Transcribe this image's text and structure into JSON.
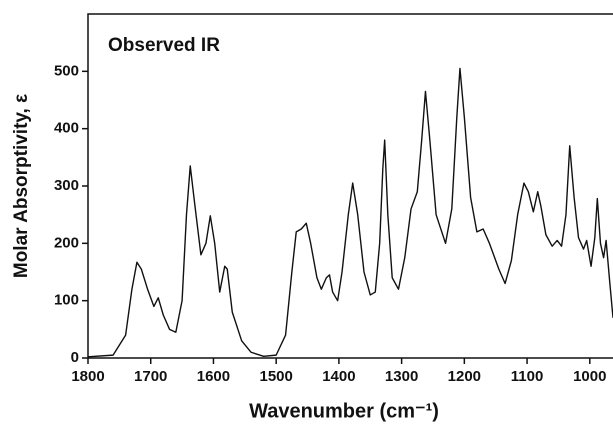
{
  "chart_data": {
    "type": "line",
    "annotation": "Observed IR",
    "xlabel": "Wavenumber (cm⁻¹)",
    "ylabel": "Molar Absorptivity, ε",
    "color": "#111111",
    "x": [
      1800,
      1760,
      1740,
      1730,
      1722,
      1715,
      1705,
      1695,
      1688,
      1680,
      1670,
      1660,
      1650,
      1643,
      1637,
      1630,
      1620,
      1612,
      1605,
      1598,
      1590,
      1582,
      1578,
      1570,
      1555,
      1540,
      1520,
      1500,
      1485,
      1475,
      1468,
      1460,
      1452,
      1445,
      1435,
      1428,
      1420,
      1415,
      1410,
      1402,
      1395,
      1385,
      1378,
      1370,
      1360,
      1350,
      1342,
      1335,
      1330,
      1327,
      1322,
      1315,
      1305,
      1295,
      1285,
      1275,
      1268,
      1262,
      1255,
      1245,
      1230,
      1220,
      1212,
      1207,
      1200,
      1190,
      1180,
      1170,
      1160,
      1145,
      1135,
      1125,
      1115,
      1105,
      1098,
      1090,
      1083,
      1078,
      1070,
      1060,
      1052,
      1045,
      1038,
      1032,
      1025,
      1018,
      1010,
      1005,
      998,
      992,
      988,
      983,
      978,
      974,
      968,
      963
    ],
    "values": [
      2,
      5,
      40,
      120,
      167,
      155,
      120,
      90,
      105,
      75,
      50,
      45,
      100,
      250,
      335,
      270,
      180,
      200,
      248,
      200,
      115,
      160,
      155,
      80,
      30,
      10,
      3,
      5,
      40,
      150,
      220,
      225,
      235,
      200,
      140,
      120,
      140,
      145,
      115,
      100,
      150,
      250,
      305,
      250,
      150,
      110,
      115,
      200,
      330,
      380,
      250,
      140,
      120,
      175,
      260,
      290,
      380,
      465,
      380,
      250,
      200,
      260,
      420,
      505,
      420,
      280,
      220,
      225,
      200,
      155,
      130,
      170,
      250,
      305,
      290,
      255,
      290,
      265,
      215,
      195,
      205,
      195,
      250,
      370,
      280,
      210,
      190,
      205,
      160,
      210,
      278,
      200,
      175,
      205,
      130,
      70
    ],
    "xlim": [
      1800,
      963
    ],
    "ylim": [
      0,
      600
    ],
    "xticks": [
      1800,
      1700,
      1600,
      1500,
      1400,
      1300,
      1200,
      1100,
      1000
    ],
    "yticks": [
      0,
      100,
      200,
      300,
      400,
      500
    ]
  }
}
